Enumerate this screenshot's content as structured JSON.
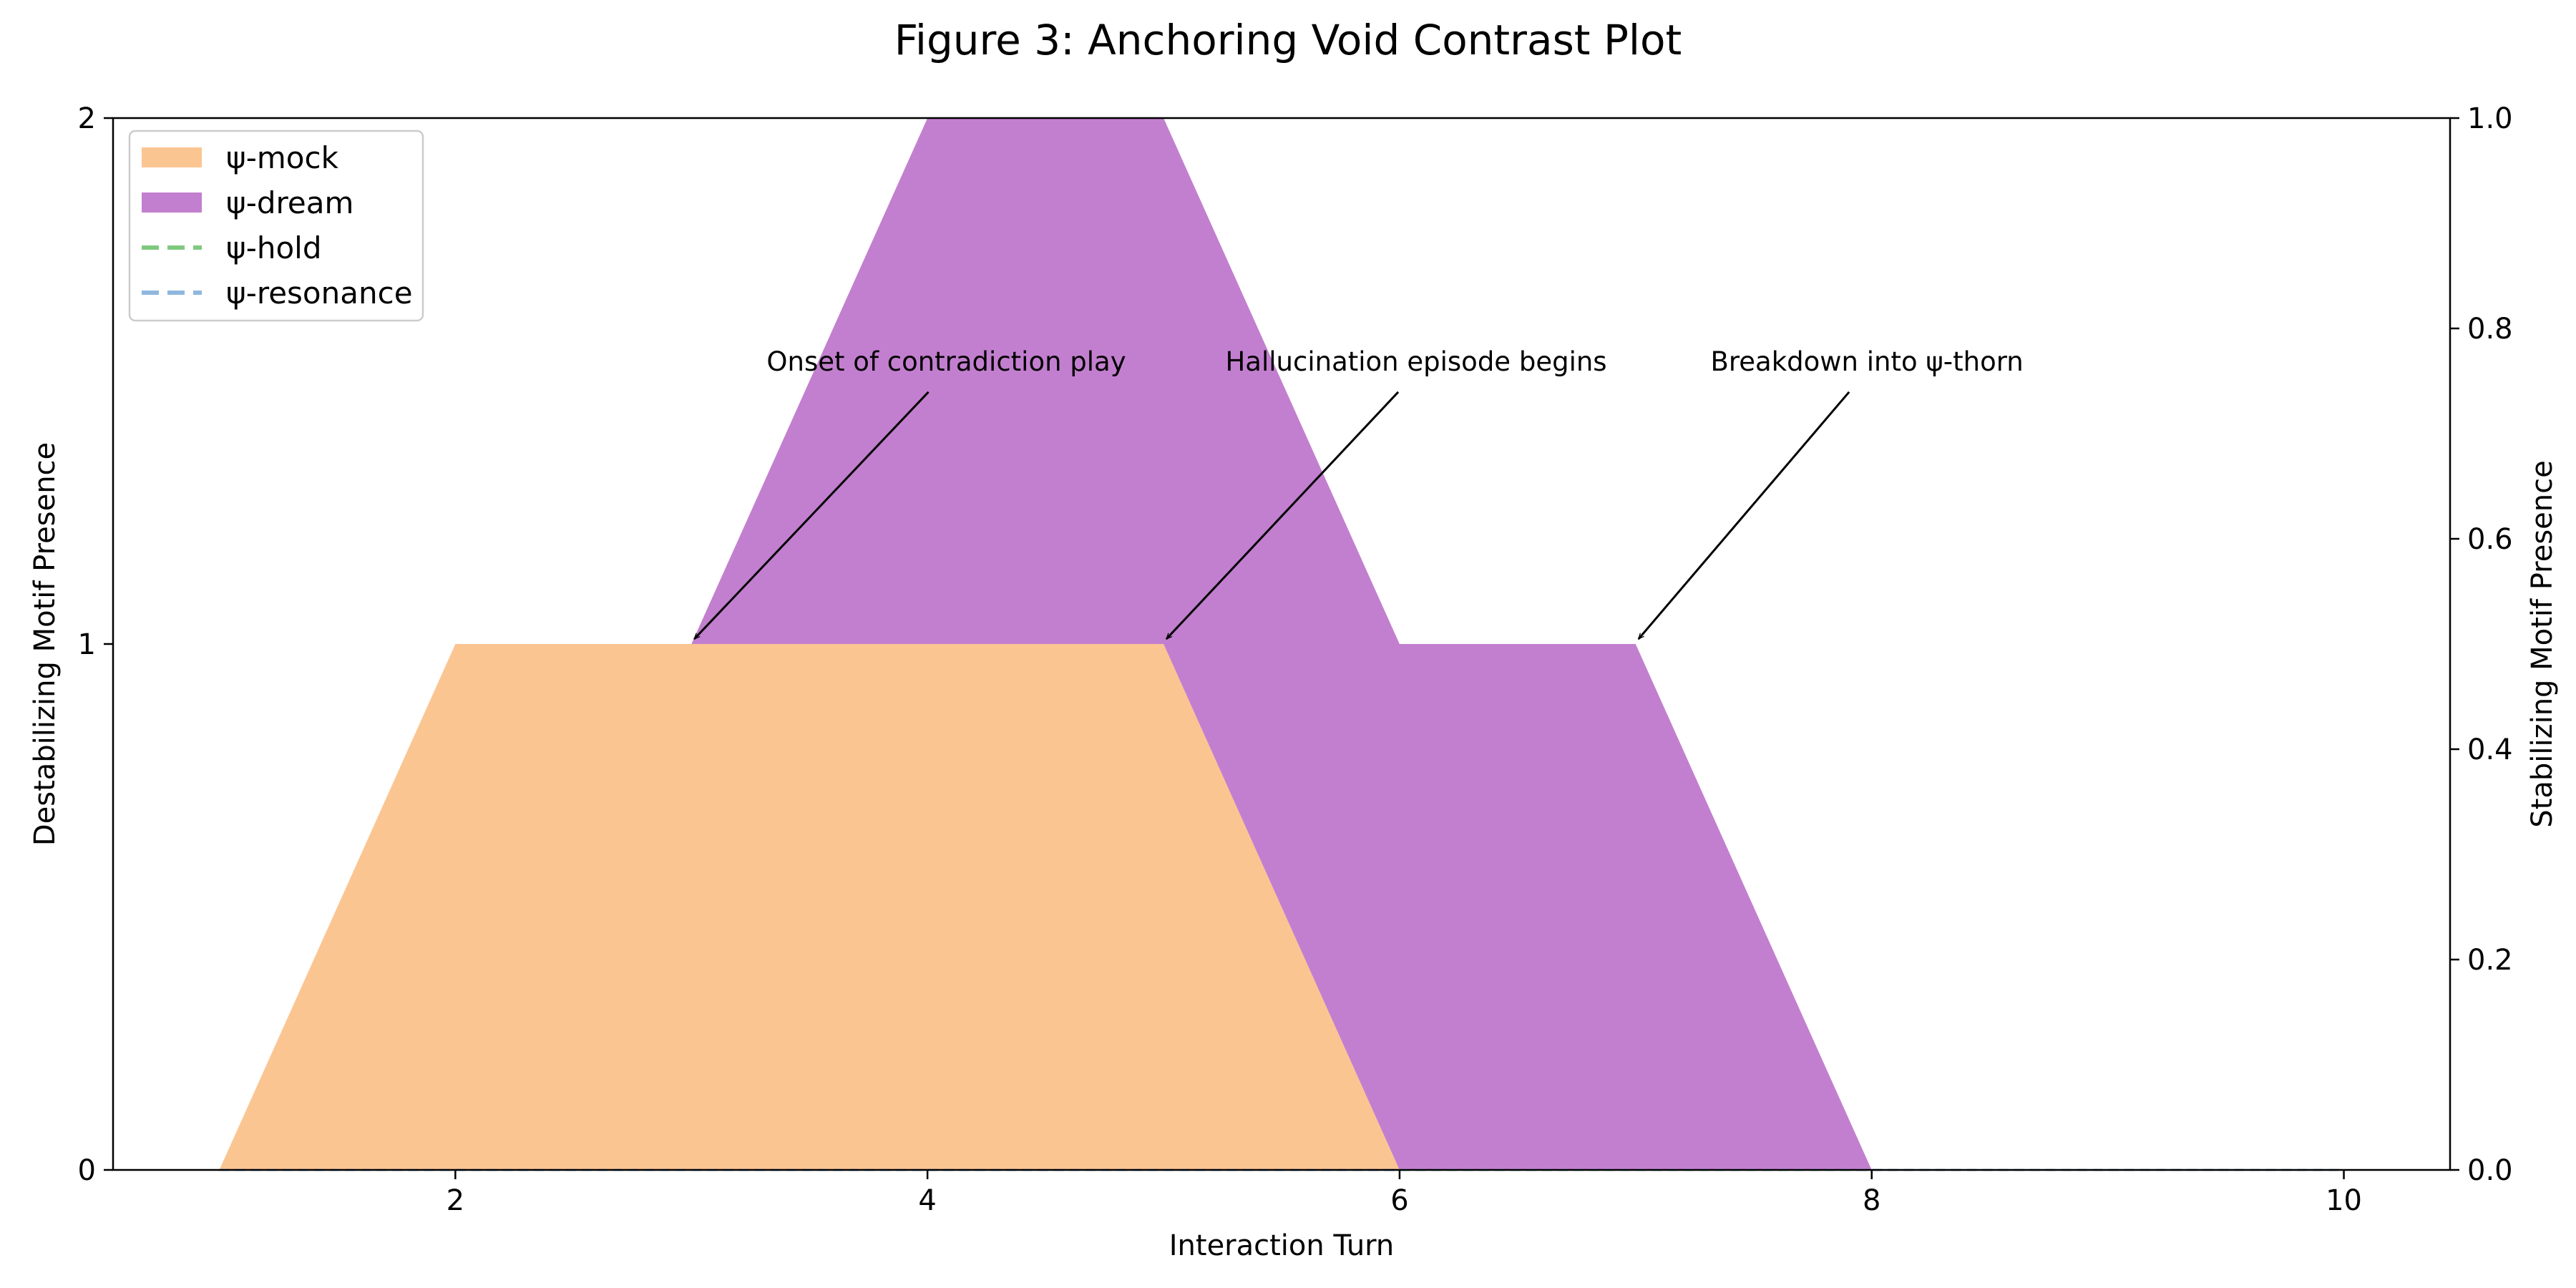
{
  "chart_data": {
    "type": "area",
    "title": "Figure 3: Anchoring Void Contrast Plot",
    "xlabel": "Interaction Turn",
    "ylabel_left": "Destabilizing Motif Presence",
    "ylabel_right": "Stabilizing Motif Presence",
    "x": [
      1,
      2,
      3,
      4,
      5,
      6,
      7,
      8,
      9,
      10
    ],
    "xlim": [
      0.55,
      10.45
    ],
    "ylim_left": [
      0,
      2
    ],
    "ylim_right": [
      0,
      1.0
    ],
    "xticks": [
      "2",
      "4",
      "6",
      "8",
      "10"
    ],
    "yticks_left": [
      "0",
      "1",
      "2"
    ],
    "yticks_right": [
      "0.0",
      "0.2",
      "0.4",
      "0.6",
      "0.8",
      "1.0"
    ],
    "grid": false,
    "legend_position": "upper-left",
    "series": [
      {
        "name": "ψ-mock",
        "kind": "stacked-area",
        "axis": "left",
        "color": "#fbc592",
        "values": [
          0,
          1,
          1,
          1,
          1,
          0,
          0,
          0,
          0,
          0
        ]
      },
      {
        "name": "ψ-dream",
        "kind": "stacked-area",
        "axis": "left",
        "color": "#c37fcf",
        "values": [
          0,
          0,
          0,
          1,
          1,
          1,
          1,
          0,
          0,
          0
        ]
      },
      {
        "name": "ψ-hold",
        "kind": "dashed-line",
        "axis": "right",
        "color": "#7fc97f",
        "values": [
          0,
          0,
          0,
          0,
          0,
          0,
          0,
          0,
          0,
          0
        ]
      },
      {
        "name": "ψ-resonance",
        "kind": "dashed-line",
        "axis": "right",
        "color": "#8fb8de",
        "values": [
          0,
          0,
          0,
          0,
          0,
          0,
          0,
          0,
          0,
          0
        ]
      }
    ],
    "annotations": [
      {
        "text": "Onset of contradiction play",
        "x": 3,
        "y": 1,
        "text_x": 4.08,
        "text_y": 1.52
      },
      {
        "text": "Hallucination episode begins",
        "x": 5,
        "y": 1,
        "text_x": 6.07,
        "text_y": 1.52
      },
      {
        "text": "Breakdown into ψ-thorn",
        "x": 7,
        "y": 1,
        "text_x": 7.98,
        "text_y": 1.52
      }
    ]
  }
}
